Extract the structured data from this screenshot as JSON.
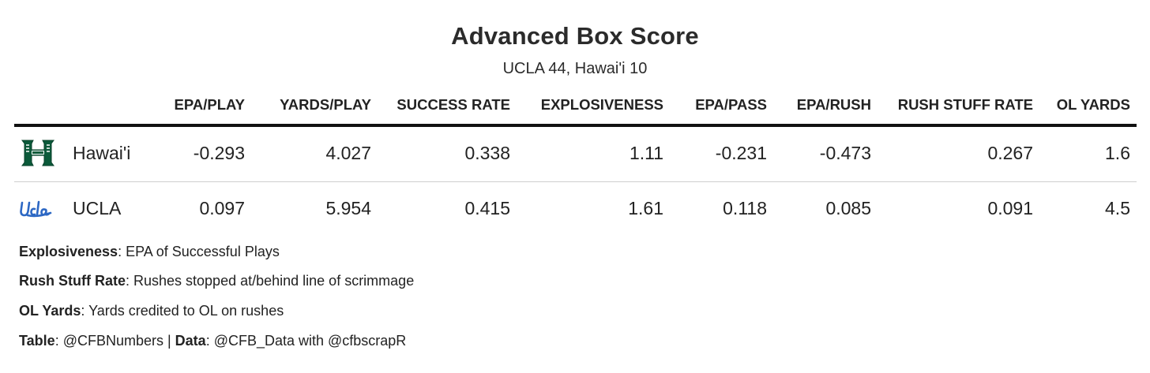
{
  "header": {
    "title": "Advanced Box Score",
    "subtitle": "UCLA 44, Hawai'i 10"
  },
  "table": {
    "columns": [
      "EPA/PLAY",
      "YARDS/PLAY",
      "SUCCESS RATE",
      "EXPLOSIVENESS",
      "EPA/PASS",
      "EPA/RUSH",
      "RUSH STUFF RATE",
      "OL YARDS"
    ],
    "rows": [
      {
        "team": "Hawai'i",
        "logo_icon": "hawaii-h-logo",
        "logo_color": "#0b5a3a",
        "values": [
          "-0.293",
          "4.027",
          "0.338",
          "1.11",
          "-0.231",
          "-0.473",
          "0.267",
          "1.6"
        ]
      },
      {
        "team": "UCLA",
        "logo_icon": "ucla-script-logo",
        "logo_color": "#2d68c4",
        "values": [
          "0.097",
          "5.954",
          "0.415",
          "1.61",
          "0.118",
          "0.085",
          "0.091",
          "4.5"
        ]
      }
    ]
  },
  "footnotes": {
    "explosiveness_term": "Explosiveness",
    "explosiveness_def": ": EPA of Successful Plays",
    "stuff_term": "Rush Stuff Rate",
    "stuff_def": ": Rushes stopped at/behind line of scrimmage",
    "ol_term": "OL Yards",
    "ol_def": ": Yards credited to OL on rushes",
    "table_term": "Table",
    "table_def": ": @CFBNumbers | ",
    "data_term": "Data",
    "data_def": ": @CFB_Data with @cfbscrapR"
  }
}
